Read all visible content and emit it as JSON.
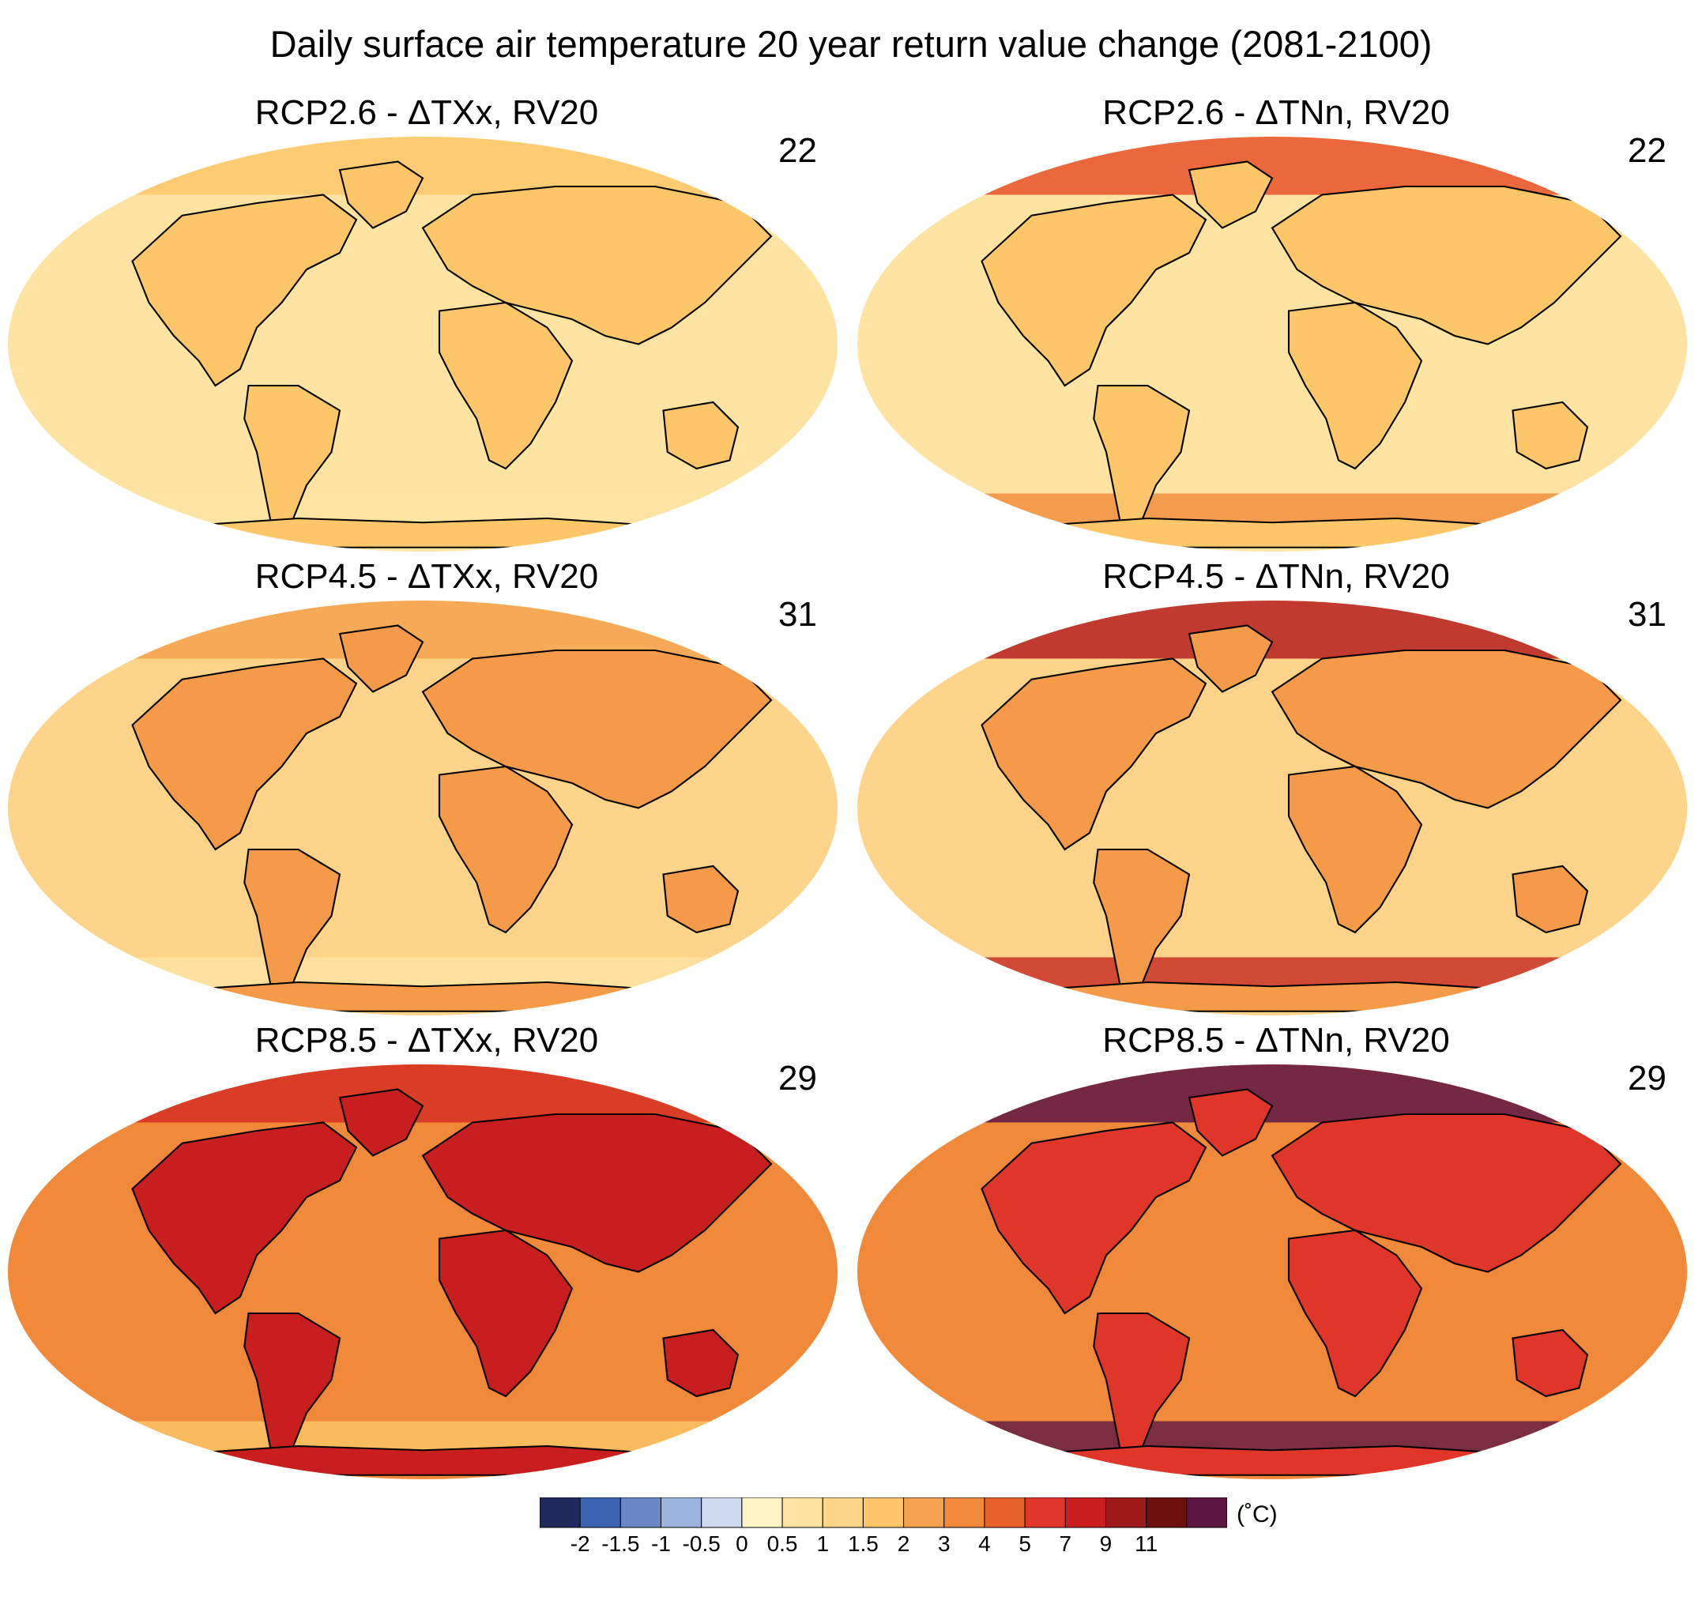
{
  "title": "Daily surface air temperature 20 year return value change (2081-2100)",
  "panels": [
    {
      "title": "RCP2.6 - ΔTXx, RV20",
      "count": "22",
      "variable": "TXx",
      "scenario": "RCP2.6",
      "base_color": "#fee3a2",
      "land_color": "#fdc769",
      "arctic_color": "#fdc769",
      "southern_band_color": "#fee3a2"
    },
    {
      "title": "RCP2.6 - ΔTNn, RV20",
      "count": "22",
      "variable": "TNn",
      "scenario": "RCP2.6",
      "base_color": "#fee3a2",
      "land_color": "#fdc769",
      "arctic_color": "#e8512a",
      "southern_band_color": "#f08a3a"
    },
    {
      "title": "RCP4.5 - ΔTXx, RV20",
      "count": "31",
      "variable": "TXx",
      "scenario": "RCP4.5",
      "base_color": "#fdd48a",
      "land_color": "#f59a48",
      "arctic_color": "#f5a24e",
      "southern_band_color": "#fee3a2"
    },
    {
      "title": "RCP4.5 - ΔTNn, RV20",
      "count": "31",
      "variable": "TNn",
      "scenario": "RCP4.5",
      "base_color": "#fdd48a",
      "land_color": "#f59a48",
      "arctic_color": "#b51f20",
      "southern_band_color": "#c4271f"
    },
    {
      "title": "RCP8.5 - ΔTXx, RV20",
      "count": "29",
      "variable": "TXx",
      "scenario": "RCP8.5",
      "base_color": "#f08a3a",
      "land_color": "#c81e20",
      "arctic_color": "#d52f22",
      "southern_band_color": "#fdc769"
    },
    {
      "title": "RCP8.5 - ΔTNn, RV20",
      "count": "29",
      "variable": "TNn",
      "scenario": "RCP8.5",
      "base_color": "#f08a3a",
      "land_color": "#e0362a",
      "arctic_color": "#5e1645",
      "southern_band_color": "#5e1645"
    }
  ],
  "colorbar": {
    "unit": "(˚C)",
    "colors": [
      "#1c2a5c",
      "#3a63b0",
      "#6b86c3",
      "#9bb3dd",
      "#cfdaf0",
      "#fff3c8",
      "#fee3a2",
      "#fdd48a",
      "#fdc769",
      "#f5a24e",
      "#f08a3a",
      "#e8612a",
      "#e0362a",
      "#c81e20",
      "#9e1a1a",
      "#6e1010",
      "#5e1645"
    ],
    "tick_labels": [
      "-2",
      "-1.5",
      "-1",
      "-0.5",
      "0",
      "0.5",
      "1",
      "1.5",
      "2",
      "3",
      "4",
      "5",
      "7",
      "9",
      "11"
    ]
  }
}
